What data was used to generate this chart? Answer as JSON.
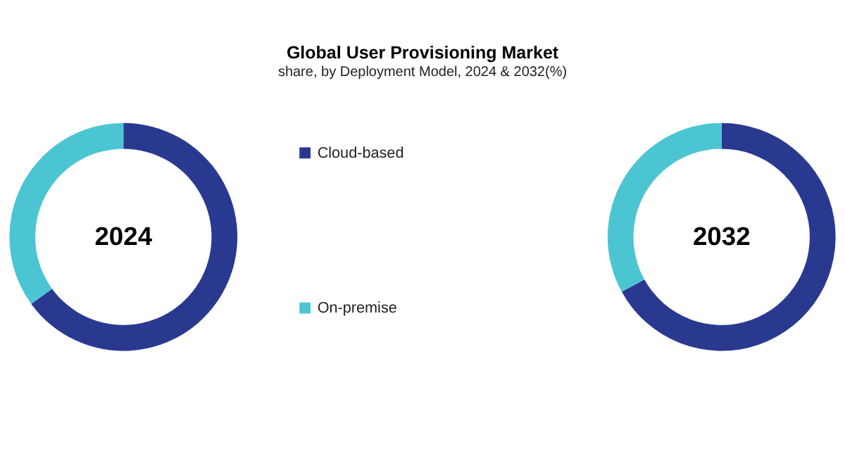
{
  "chart_data": [
    {
      "type": "donut",
      "title": "Global User Provisioning Market",
      "subtitle": "share, by Deployment Model, 2024 & 2032(%)",
      "categories": [
        "Cloud-based",
        "On-premise"
      ],
      "values": [
        65,
        35
      ],
      "colors": [
        "#2a3990",
        "#4cc5d2"
      ],
      "annotations": [
        "2024"
      ],
      "legend": "right"
    },
    {
      "type": "donut",
      "categories": [
        null,
        null
      ],
      "values": [
        67,
        33
      ],
      "colors": [
        "#2a3990",
        "#4cc5d2"
      ],
      "annotations": [
        "2032"
      ]
    }
  ]
}
